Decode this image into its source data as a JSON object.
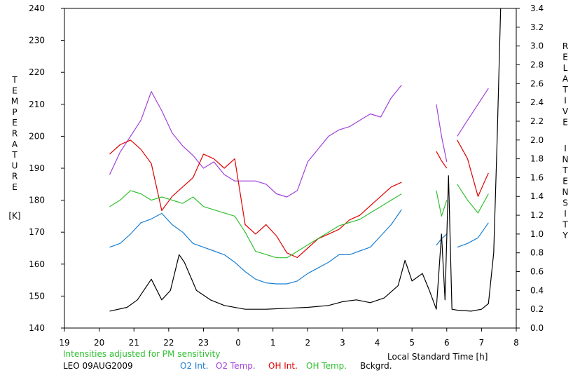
{
  "chart_data": {
    "type": "line",
    "xlabel": "Local Standard Time [h]",
    "ylabel_left_letters": [
      "T",
      "E",
      "M",
      "P",
      "E",
      "R",
      "A",
      "T",
      "U",
      "R",
      "E"
    ],
    "ylabel_left_unit": "[K]",
    "ylabel_right_word1": [
      "R",
      "E",
      "L",
      "A",
      "T",
      "I",
      "V",
      "E"
    ],
    "ylabel_right_word2": [
      "I",
      "N",
      "T",
      "E",
      "N",
      "S",
      "I",
      "T",
      "Y"
    ],
    "x_ticks": [
      "19",
      "20",
      "21",
      "22",
      "23",
      "0",
      "1",
      "2",
      "3",
      "4",
      "5",
      "6",
      "7",
      "8"
    ],
    "xlim": [
      19,
      32
    ],
    "ylim_left": [
      140,
      240
    ],
    "yticks_left": [
      "140",
      "150",
      "160",
      "170",
      "180",
      "190",
      "200",
      "210",
      "220",
      "230",
      "240"
    ],
    "ylim_right": [
      0,
      3.4
    ],
    "yticks_right": [
      "0.0",
      "0.2",
      "0.4",
      "0.6",
      "0.8",
      "1.0",
      "1.2",
      "1.4",
      "1.6",
      "1.8",
      "2.0",
      "2.2",
      "2.4",
      "2.6",
      "2.8",
      "3.0",
      "3.2",
      "3.4"
    ],
    "note": "Intensities adjusted for PM sensitivity",
    "station": "LEO 09AUG2009",
    "colors": {
      "o2_int": "#1a7fd4",
      "o2_temp": "#a040d8",
      "oh_int": "#e00000",
      "oh_temp": "#30c030",
      "bckgrd": "#000000",
      "note": "#30c030"
    },
    "series": [
      {
        "name": "O2 Int.",
        "axis": "right",
        "segments": [
          {
            "x": [
              20.3,
              20.6,
              20.9,
              21.2,
              21.5,
              21.8,
              22.1,
              22.4,
              22.7,
              23.0,
              23.3,
              23.6,
              23.9,
              24.2,
              24.5,
              24.8,
              25.1,
              25.4,
              25.7,
              26.0,
              26.3,
              26.6,
              26.9,
              27.2,
              27.5,
              27.8,
              28.1,
              28.4,
              28.7
            ],
            "y": [
              0.86,
              0.9,
              1.0,
              1.12,
              1.16,
              1.22,
              1.1,
              1.02,
              0.9,
              0.86,
              0.82,
              0.78,
              0.7,
              0.6,
              0.52,
              0.48,
              0.47,
              0.47,
              0.5,
              0.58,
              0.64,
              0.7,
              0.78,
              0.78,
              0.82,
              0.86,
              0.98,
              1.1,
              1.26
            ]
          },
          {
            "x": [
              29.7,
              29.85,
              30.0
            ],
            "y": [
              0.88,
              0.95,
              1.0
            ]
          },
          {
            "x": [
              30.3,
              30.6,
              30.9,
              31.2
            ],
            "y": [
              0.86,
              0.9,
              0.96,
              1.12
            ]
          }
        ]
      },
      {
        "name": "O2 Temp.",
        "axis": "left",
        "segments": [
          {
            "x": [
              20.3,
              20.6,
              20.9,
              21.2,
              21.5,
              21.8,
              22.1,
              22.4,
              22.7,
              23.0,
              23.3,
              23.6,
              23.9,
              24.2,
              24.5,
              24.8,
              25.1,
              25.4,
              25.7,
              26.0,
              26.3,
              26.6,
              26.9,
              27.2,
              27.5,
              27.8,
              28.1,
              28.4,
              28.7
            ],
            "y": [
              188,
              195,
              200,
              205,
              214,
              208,
              201,
              197,
              194,
              190,
              192,
              188,
              186,
              186,
              186,
              185,
              182,
              181,
              183,
              192,
              196,
              200,
              202,
              203,
              205,
              207,
              206,
              212,
              216
            ]
          },
          {
            "x": [
              29.7,
              29.85,
              30.0
            ],
            "y": [
              210,
              200,
              192
            ]
          },
          {
            "x": [
              30.3,
              30.6,
              30.9,
              31.2
            ],
            "y": [
              200,
              205,
              210,
              215
            ]
          }
        ]
      },
      {
        "name": "OH Int.",
        "axis": "right",
        "segments": [
          {
            "x": [
              20.3,
              20.6,
              20.9,
              21.2,
              21.5,
              21.8,
              22.1,
              22.4,
              22.7,
              23.0,
              23.3,
              23.6,
              23.9,
              24.2,
              24.5,
              24.8,
              25.1,
              25.4,
              25.7,
              26.0,
              26.3,
              26.6,
              26.9,
              27.2,
              27.5,
              27.8,
              28.1,
              28.4,
              28.7
            ],
            "y": [
              1.85,
              1.95,
              2.0,
              1.9,
              1.75,
              1.25,
              1.4,
              1.5,
              1.6,
              1.85,
              1.8,
              1.7,
              1.8,
              1.1,
              1.0,
              1.1,
              0.98,
              0.8,
              0.75,
              0.85,
              0.95,
              1.0,
              1.05,
              1.15,
              1.2,
              1.3,
              1.4,
              1.5,
              1.55
            ]
          },
          {
            "x": [
              29.7,
              29.85,
              30.0
            ],
            "y": [
              1.88,
              1.78,
              1.7
            ]
          },
          {
            "x": [
              30.3,
              30.6,
              30.9,
              31.2
            ],
            "y": [
              2.0,
              1.8,
              1.4,
              1.65
            ]
          }
        ]
      },
      {
        "name": "OH Temp.",
        "axis": "left",
        "segments": [
          {
            "x": [
              20.3,
              20.6,
              20.9,
              21.2,
              21.5,
              21.8,
              22.1,
              22.4,
              22.7,
              23.0,
              23.3,
              23.6,
              23.9,
              24.2,
              24.5,
              24.8,
              25.1,
              25.4,
              25.7,
              26.0,
              26.3,
              26.6,
              26.9,
              27.2,
              27.5,
              27.8,
              28.1,
              28.4,
              28.7
            ],
            "y": [
              178,
              180,
              183,
              182,
              180,
              181,
              180,
              179,
              181,
              178,
              177,
              176,
              175,
              170,
              164,
              163,
              162,
              162,
              164,
              166,
              168,
              170,
              172,
              173,
              174,
              176,
              178,
              180,
              182
            ]
          },
          {
            "x": [
              29.7,
              29.85,
              30.0
            ],
            "y": [
              183,
              175,
              180
            ]
          },
          {
            "x": [
              30.3,
              30.6,
              30.9,
              31.2
            ],
            "y": [
              185,
              180,
              176,
              182
            ]
          }
        ]
      },
      {
        "name": "Bckgrd.",
        "axis": "right",
        "segments": [
          {
            "x": [
              20.3,
              20.8,
              21.1,
              21.5,
              21.8,
              22.05,
              22.3,
              22.45,
              22.8,
              23.2,
              23.6,
              24.2,
              24.8,
              25.4,
              26.0,
              26.6,
              27.0,
              27.4,
              27.8,
              28.2,
              28.6,
              28.8,
              29.0,
              29.3,
              29.5,
              29.7,
              29.85,
              29.95,
              30.05,
              30.15,
              30.3,
              30.7,
              31.0,
              31.2,
              31.35,
              31.45,
              31.55
            ],
            "y": [
              0.18,
              0.22,
              0.3,
              0.52,
              0.3,
              0.4,
              0.78,
              0.7,
              0.4,
              0.3,
              0.24,
              0.2,
              0.2,
              0.21,
              0.22,
              0.24,
              0.28,
              0.3,
              0.27,
              0.32,
              0.45,
              0.72,
              0.5,
              0.58,
              0.4,
              0.2,
              1.0,
              0.3,
              1.62,
              0.2,
              0.19,
              0.18,
              0.2,
              0.26,
              0.8,
              2.0,
              3.4
            ]
          }
        ]
      }
    ]
  }
}
